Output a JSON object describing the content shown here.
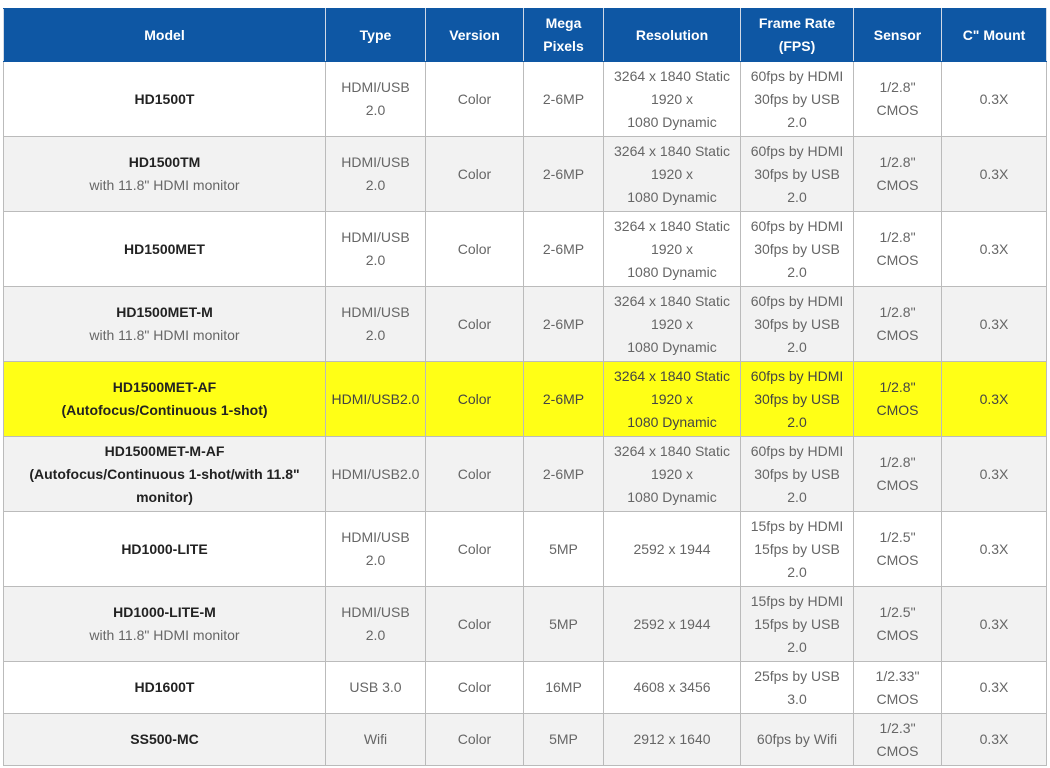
{
  "headers": {
    "model": "Model",
    "type": "Type",
    "version": "Version",
    "mega_pixels": [
      "Mega",
      "Pixels"
    ],
    "resolution": "Resolution",
    "frame_rate": [
      "Frame Rate",
      "(FPS)"
    ],
    "sensor": "Sensor",
    "c_mount": "C\" Mount"
  },
  "rows": [
    {
      "model": "HD1500T",
      "model_sub": "",
      "type": [
        "HDMI/USB",
        "2.0"
      ],
      "version": "Color",
      "mp": "2-6MP",
      "resolution": [
        "3264 x 1840 Static",
        "1920 x",
        "1080 Dynamic"
      ],
      "fps": [
        "60fps by HDMI",
        "30fps by USB",
        "2.0"
      ],
      "sensor": [
        "1/2.8\"",
        "CMOS"
      ],
      "mount": "0.3X"
    },
    {
      "model": "HD1500TM",
      "model_sub": "with 11.8\" HDMI monitor",
      "type": [
        "HDMI/USB",
        "2.0"
      ],
      "version": "Color",
      "mp": "2-6MP",
      "resolution": [
        "3264 x 1840 Static",
        "1920 x",
        "1080 Dynamic"
      ],
      "fps": [
        "60fps by HDMI",
        "30fps by USB",
        "2.0"
      ],
      "sensor": [
        "1/2.8\"",
        "CMOS"
      ],
      "mount": "0.3X"
    },
    {
      "model": "HD1500MET",
      "model_sub": "",
      "type": [
        "HDMI/USB",
        "2.0"
      ],
      "version": "Color",
      "mp": "2-6MP",
      "resolution": [
        "3264 x 1840 Static",
        "1920 x",
        "1080 Dynamic"
      ],
      "fps": [
        "60fps by HDMI",
        "30fps by USB",
        "2.0"
      ],
      "sensor": [
        "1/2.8\"",
        "CMOS"
      ],
      "mount": "0.3X"
    },
    {
      "model": "HD1500MET-M",
      "model_sub": "with 11.8\" HDMI monitor",
      "type": [
        "HDMI/USB",
        "2.0"
      ],
      "version": "Color",
      "mp": "2-6MP",
      "resolution": [
        "3264 x 1840 Static",
        "1920 x",
        "1080 Dynamic"
      ],
      "fps": [
        "60fps by HDMI",
        "30fps by USB",
        "2.0"
      ],
      "sensor": [
        "1/2.8\"",
        "CMOS"
      ],
      "mount": "0.3X"
    },
    {
      "model": "HD1500MET-AF",
      "model_sub": "(Autofocus/Continuous 1-shot)",
      "type": [
        "HDMI/USB2.0"
      ],
      "version": "Color",
      "mp": "2-6MP",
      "resolution": [
        "3264 x 1840 Static",
        "1920 x",
        "1080 Dynamic"
      ],
      "fps": [
        "60fps by HDMI",
        "30fps by USB",
        "2.0"
      ],
      "sensor": [
        "1/2.8\"",
        "CMOS"
      ],
      "mount": "0.3X",
      "highlight": true,
      "highlight_color": "#ffff16"
    },
    {
      "model": "HD1500MET-M-AF",
      "model_sub": "(Autofocus/Continuous 1-shot/with 11.8\" monitor)",
      "type": [
        "HDMI/USB2.0"
      ],
      "version": "Color",
      "mp": "2-6MP",
      "resolution": [
        "3264 x 1840 Static",
        "1920 x",
        "1080 Dynamic"
      ],
      "fps": [
        "60fps by HDMI",
        "30fps by USB",
        "2.0"
      ],
      "sensor": [
        "1/2.8\"",
        "CMOS"
      ],
      "mount": "0.3X",
      "sub_bold": true
    },
    {
      "model": "HD1000-LITE",
      "model_sub": "",
      "type": [
        "HDMI/USB",
        "2.0"
      ],
      "version": "Color",
      "mp": "5MP",
      "resolution": [
        "2592 x 1944"
      ],
      "fps": [
        "15fps by HDMI",
        "15fps by USB",
        "2.0"
      ],
      "sensor": [
        "1/2.5\"",
        "CMOS"
      ],
      "mount": "0.3X"
    },
    {
      "model": "HD1000-LITE-M",
      "model_sub": "with 11.8\" HDMI monitor",
      "type": [
        "HDMI/USB",
        "2.0"
      ],
      "version": "Color",
      "mp": "5MP",
      "resolution": [
        "2592 x 1944"
      ],
      "fps": [
        "15fps by HDMI",
        "15fps by USB",
        "2.0"
      ],
      "sensor": [
        "1/2.5\"",
        "CMOS"
      ],
      "mount": "0.3X"
    },
    {
      "model": "HD1600T",
      "model_sub": "",
      "type": [
        "USB 3.0"
      ],
      "version": "Color",
      "mp": "16MP",
      "resolution": [
        "4608 x 3456"
      ],
      "fps": [
        "25fps by USB",
        "3.0"
      ],
      "sensor": [
        "1/2.33\"",
        "CMOS"
      ],
      "mount": "0.3X",
      "short": true
    },
    {
      "model": "SS500-MC",
      "model_sub": "",
      "type": [
        "Wifi"
      ],
      "version": "Color",
      "mp": "5MP",
      "resolution": [
        "2912 x 1640"
      ],
      "fps": [
        "60fps by Wifi"
      ],
      "sensor": [
        "1/2.3\"",
        "CMOS"
      ],
      "mount": "0.3X",
      "short": true
    }
  ],
  "colors": {
    "header_bg": "#0e57a4",
    "header_text": "#ffffff",
    "row_alt": "#f2f2f2",
    "highlight": "#ffff16",
    "border": "#bbbbbb"
  }
}
